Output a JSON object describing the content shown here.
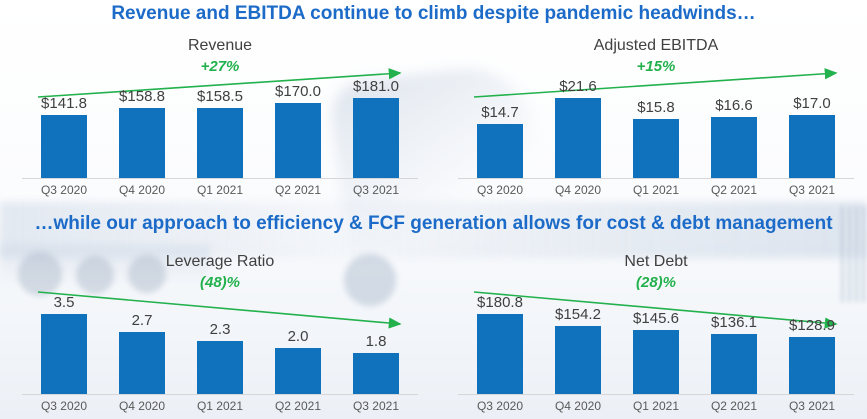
{
  "headers": {
    "top": "Revenue and EBITDA continue to climb despite pandemic headwinds…",
    "bottom": "…while our approach to efficiency & FCF generation allows for cost & debt management"
  },
  "colors": {
    "bar_blue": "#1072BC",
    "header_blue": "#1C6BC8",
    "trend_green": "#22B14C",
    "title_gray": "#404040",
    "axis_gray": "#595959"
  },
  "background": {
    "description": "faint washed-out photo of semi trucks"
  },
  "chart_data": [
    {
      "type": "bar",
      "title": "Revenue",
      "change_label": "+27%",
      "trend": "up",
      "categories": [
        "Q3 2020",
        "Q4 2020",
        "Q1 2021",
        "Q2 2021",
        "Q3 2021"
      ],
      "values": [
        141.8,
        158.8,
        158.5,
        170.0,
        181.0
      ],
      "value_labels": [
        "$141.8",
        "$158.8",
        "$158.5",
        "$170.0",
        "$181.0"
      ],
      "xlabel": "",
      "ylabel": "",
      "ylim": [
        0,
        181.0
      ],
      "grid": false,
      "legend": "none"
    },
    {
      "type": "bar",
      "title": "Adjusted EBITDA",
      "change_label": "+15%",
      "trend": "up",
      "categories": [
        "Q3 2020",
        "Q4 2020",
        "Q1 2021",
        "Q2 2021",
        "Q3 2021"
      ],
      "values": [
        14.7,
        21.6,
        15.8,
        16.6,
        17.0
      ],
      "value_labels": [
        "$14.7",
        "$21.6",
        "$15.8",
        "$16.6",
        "$17.0"
      ],
      "xlabel": "",
      "ylabel": "",
      "ylim": [
        0,
        21.6
      ],
      "grid": false,
      "legend": "none"
    },
    {
      "type": "bar",
      "title": "Leverage Ratio",
      "change_label": "(48)%",
      "trend": "down",
      "categories": [
        "Q3 2020",
        "Q4 2020",
        "Q1 2021",
        "Q2 2021",
        "Q3 2021"
      ],
      "values": [
        3.5,
        2.7,
        2.3,
        2.0,
        1.8
      ],
      "value_labels": [
        "3.5",
        "2.7",
        "2.3",
        "2.0",
        "1.8"
      ],
      "xlabel": "",
      "ylabel": "",
      "ylim": [
        0,
        3.5
      ],
      "grid": false,
      "legend": "none"
    },
    {
      "type": "bar",
      "title": "Net Debt",
      "change_label": "(28)%",
      "trend": "down",
      "categories": [
        "Q3 2020",
        "Q4 2020",
        "Q1 2021",
        "Q2 2021",
        "Q3 2021"
      ],
      "values": [
        180.8,
        154.2,
        145.6,
        136.1,
        128.9
      ],
      "value_labels": [
        "$180.8",
        "$154.2",
        "$145.6",
        "$136.1",
        "$128.9"
      ],
      "xlabel": "",
      "ylabel": "",
      "ylim": [
        0,
        180.8
      ],
      "grid": false,
      "legend": "none"
    }
  ]
}
